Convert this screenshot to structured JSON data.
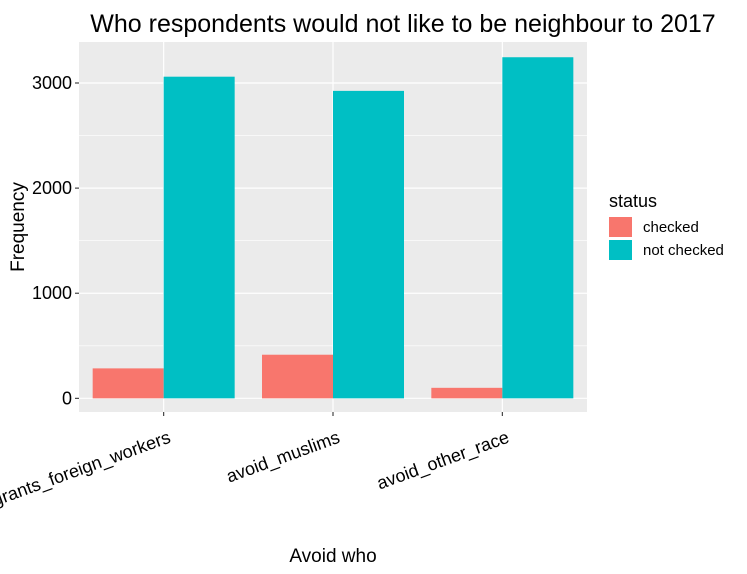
{
  "chart_data": {
    "type": "bar",
    "title": "Who respondents would not like to be neighbour to 2017",
    "xlabel": "Avoid who",
    "ylabel": "Frequency",
    "categories": [
      "avoid_immigrants_foreign_workers",
      "avoid_muslims",
      "avoid_other_race"
    ],
    "series": [
      {
        "name": "checked",
        "values": [
          285,
          415,
          100
        ],
        "color": "#F8766D"
      },
      {
        "name": "not checked",
        "values": [
          3060,
          2925,
          3245
        ],
        "color": "#00BFC4"
      }
    ],
    "ylim": [
      -130,
      3390
    ],
    "yticks": [
      0,
      1000,
      2000,
      3000
    ],
    "ytick_labels": [
      "0",
      "1000",
      "2000",
      "3000"
    ],
    "grid": true,
    "legend": {
      "title": "status",
      "position": "right"
    },
    "panel_background": "#EBEBEB",
    "grid_color": "#FFFFFF"
  }
}
